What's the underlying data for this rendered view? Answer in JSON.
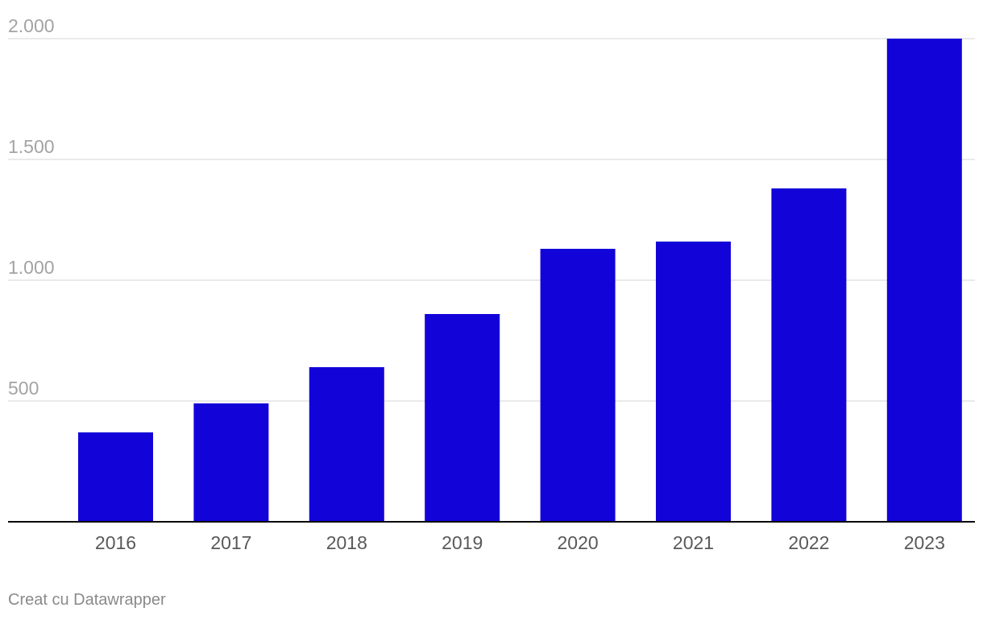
{
  "chart_data": {
    "type": "bar",
    "title": "",
    "xlabel": "",
    "ylabel": "",
    "categories": [
      "2016",
      "2017",
      "2018",
      "2019",
      "2020",
      "2021",
      "2022",
      "2023"
    ],
    "values": [
      370,
      490,
      640,
      860,
      1130,
      1160,
      1380,
      2000
    ],
    "ylim": [
      0,
      2000
    ],
    "yticks": [
      500,
      1000,
      1500,
      2000
    ],
    "ytick_labels": [
      "500",
      "1.000",
      "1.500",
      "2.000"
    ],
    "grid": true,
    "legend": "none",
    "bar_color": "#1203d9",
    "grid_color": "#dddddd",
    "baseline_color": "#000000"
  },
  "footer": {
    "credit": "Creat cu Datawrapper"
  }
}
